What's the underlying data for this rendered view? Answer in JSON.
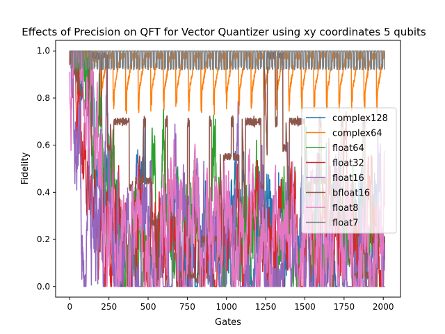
{
  "chart_data": {
    "type": "line",
    "title": "Effects of Precision on QFT for Vector Quantizer using xy coordinates 5 qubits",
    "xlabel": "Gates",
    "ylabel": "Fidelity",
    "xlim": [
      -90,
      2110
    ],
    "ylim": [
      -0.045,
      1.045
    ],
    "xticks": [
      0,
      250,
      500,
      750,
      1000,
      1250,
      1500,
      1750,
      2000
    ],
    "yticks": [
      0.0,
      0.2,
      0.4,
      0.6,
      0.8,
      1.0
    ],
    "ytick_labels": [
      "0.0",
      "0.2",
      "0.4",
      "0.6",
      "0.8",
      "1.0"
    ],
    "legend_position": "right",
    "grid": false,
    "n_points": 2010,
    "series": [
      {
        "name": "complex128",
        "color": "#1f77b4",
        "profile": "decay",
        "anchors": [
          [
            0,
            1.0
          ],
          [
            60,
            0.93
          ],
          [
            140,
            0.85
          ],
          [
            200,
            0.35
          ],
          [
            280,
            0.18
          ],
          [
            400,
            0.2
          ],
          [
            800,
            0.2
          ],
          [
            1200,
            0.2
          ],
          [
            1600,
            0.18
          ],
          [
            2010,
            0.15
          ]
        ],
        "noise": 0.09
      },
      {
        "name": "complex64",
        "color": "#ff7f0e",
        "profile": "periodic",
        "high": 0.98,
        "low": 0.82,
        "period": 80,
        "start": 0
      },
      {
        "name": "float64",
        "color": "#2ca02c",
        "profile": "decay",
        "anchors": [
          [
            0,
            1.0
          ],
          [
            30,
            0.9
          ],
          [
            100,
            0.95
          ],
          [
            180,
            0.78
          ],
          [
            230,
            0.35
          ],
          [
            400,
            0.25
          ],
          [
            800,
            0.22
          ],
          [
            1200,
            0.24
          ],
          [
            1600,
            0.28
          ],
          [
            2010,
            0.2
          ]
        ],
        "noise": 0.1
      },
      {
        "name": "float32",
        "color": "#d62728",
        "profile": "decay",
        "anchors": [
          [
            0,
            0.98
          ],
          [
            40,
            0.95
          ],
          [
            90,
            0.75
          ],
          [
            140,
            0.5
          ],
          [
            220,
            0.2
          ],
          [
            400,
            0.15
          ],
          [
            800,
            0.15
          ],
          [
            1200,
            0.2
          ],
          [
            1600,
            0.18
          ],
          [
            2010,
            0.15
          ]
        ],
        "noise": 0.1
      },
      {
        "name": "float16",
        "color": "#9467bd",
        "profile": "decay",
        "anchors": [
          [
            0,
            0.98
          ],
          [
            40,
            0.9
          ],
          [
            70,
            0.5
          ],
          [
            110,
            0.3
          ],
          [
            200,
            0.28
          ],
          [
            400,
            0.15
          ],
          [
            800,
            0.18
          ],
          [
            1200,
            0.2
          ],
          [
            1600,
            0.18
          ],
          [
            2010,
            0.12
          ]
        ],
        "noise": 0.12
      },
      {
        "name": "bfloat16",
        "color": "#8c564b",
        "profile": "steps",
        "levels": [
          0.98,
          0.7,
          0.45,
          0.3,
          0.05,
          0.2,
          0.55,
          0.7
        ],
        "period": 140,
        "start": 120
      },
      {
        "name": "float8",
        "color": "#e377c2",
        "profile": "decay",
        "anchors": [
          [
            0,
            0.98
          ],
          [
            100,
            0.72
          ],
          [
            160,
            0.68
          ],
          [
            200,
            0.45
          ],
          [
            260,
            0.2
          ],
          [
            400,
            0.25
          ],
          [
            560,
            0.35
          ],
          [
            800,
            0.2
          ],
          [
            1200,
            0.25
          ],
          [
            1600,
            0.15
          ],
          [
            2010,
            0.12
          ]
        ],
        "noise": 0.1
      },
      {
        "name": "float7",
        "color": "#7f7f7f",
        "profile": "flat",
        "high": 1.0,
        "low": 0.93,
        "period": 18,
        "start": 0
      }
    ]
  }
}
